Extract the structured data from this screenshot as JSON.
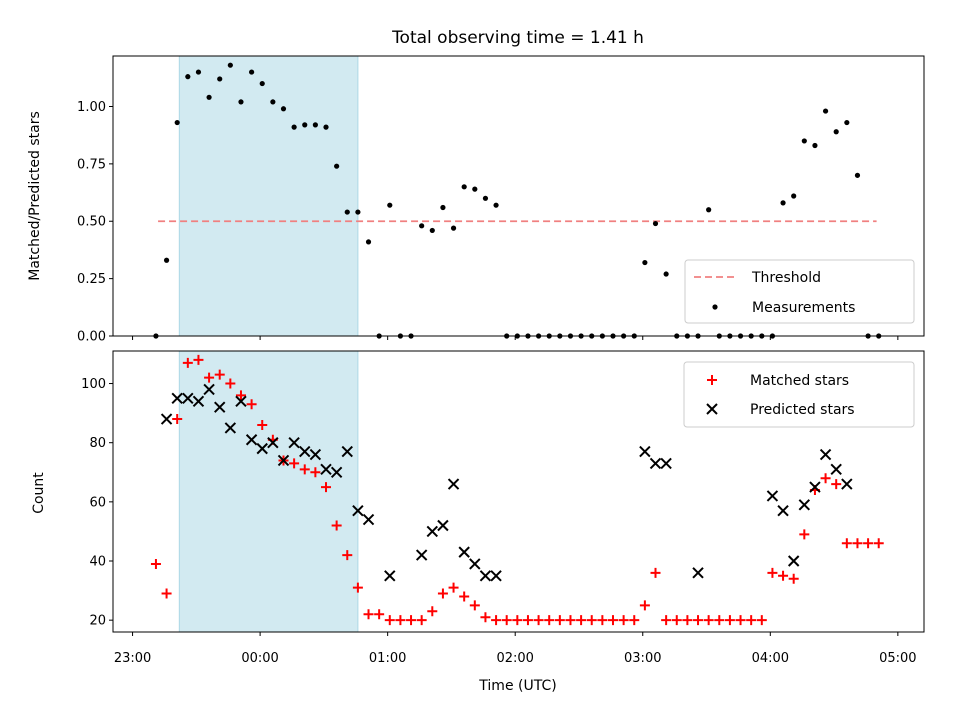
{
  "chart_data": [
    {
      "type": "scatter",
      "title": "Total observing time = 1.41 h",
      "xlabel": "",
      "ylabel": "Matched/Predicted stars",
      "xlim": [
        "23:00",
        "05:00"
      ],
      "ylim": [
        0.0,
        1.22
      ],
      "yticks": [
        "0.00",
        "0.25",
        "0.50",
        "0.75",
        "1.00"
      ],
      "shaded_region": {
        "x0": "23:22",
        "x1": "00:46",
        "color": "#add8e6"
      },
      "threshold": {
        "name": "Threshold",
        "y": 0.5,
        "x0": "23:12",
        "x1": "04:50",
        "color": "#f08080",
        "style": "dashed"
      },
      "series": [
        {
          "name": "Measurements",
          "color": "#000000",
          "x": [
            "23:11",
            "23:16",
            "23:21",
            "23:26",
            "23:31",
            "23:36",
            "23:41",
            "23:46",
            "23:51",
            "23:56",
            "00:01",
            "00:06",
            "00:11",
            "00:16",
            "00:21",
            "00:26",
            "00:31",
            "00:36",
            "00:41",
            "00:46",
            "00:51",
            "00:56",
            "01:01",
            "01:06",
            "01:11",
            "01:16",
            "01:21",
            "01:26",
            "01:31",
            "01:36",
            "01:41",
            "01:46",
            "01:51",
            "01:56",
            "02:01",
            "02:06",
            "02:11",
            "02:16",
            "02:21",
            "02:26",
            "02:31",
            "02:36",
            "02:41",
            "02:46",
            "02:51",
            "02:56",
            "03:01",
            "03:06",
            "03:11",
            "03:16",
            "03:21",
            "03:26",
            "03:31",
            "03:36",
            "03:41",
            "03:46",
            "03:51",
            "03:56",
            "04:01",
            "04:06",
            "04:11",
            "04:16",
            "04:21",
            "04:26",
            "04:31",
            "04:36",
            "04:41",
            "04:46",
            "04:51"
          ],
          "y": [
            0.0,
            0.33,
            0.93,
            1.13,
            1.15,
            1.04,
            1.12,
            1.18,
            1.02,
            1.15,
            1.1,
            1.02,
            0.99,
            0.91,
            0.92,
            0.92,
            0.91,
            0.74,
            0.54,
            0.54,
            0.41,
            0.0,
            0.57,
            0.0,
            0.0,
            0.48,
            0.46,
            0.56,
            0.47,
            0.65,
            0.64,
            0.6,
            0.57,
            0.0,
            0.0,
            0.0,
            0.0,
            0.0,
            0.0,
            0.0,
            0.0,
            0.0,
            0.0,
            0.0,
            0.0,
            0.0,
            0.32,
            0.49,
            0.27,
            0.0,
            0.0,
            0.0,
            0.55,
            0.0,
            0.0,
            0.0,
            0.0,
            0.0,
            0.0,
            0.58,
            0.61,
            0.85,
            0.83,
            0.98,
            0.89,
            0.93,
            0.7,
            0.0,
            0.0
          ]
        }
      ],
      "legend": {
        "position": "lower-right",
        "entries": [
          "Threshold",
          "Measurements"
        ]
      }
    },
    {
      "type": "scatter",
      "title": "",
      "xlabel": "Time (UTC)",
      "ylabel": "Count",
      "xlim": [
        "23:00",
        "05:00"
      ],
      "ylim": [
        16,
        111
      ],
      "yticks": [
        "20",
        "40",
        "60",
        "80",
        "100"
      ],
      "xticks": [
        "23:00",
        "00:00",
        "01:00",
        "02:00",
        "03:00",
        "04:00",
        "05:00"
      ],
      "shaded_region": {
        "x0": "23:22",
        "x1": "00:46",
        "color": "#add8e6"
      },
      "series": [
        {
          "name": "Matched stars",
          "marker": "+",
          "color": "#ff0000",
          "x": [
            "23:11",
            "23:16",
            "23:21",
            "23:26",
            "23:31",
            "23:36",
            "23:41",
            "23:46",
            "23:51",
            "23:56",
            "00:01",
            "00:06",
            "00:11",
            "00:16",
            "00:21",
            "00:26",
            "00:31",
            "00:36",
            "00:41",
            "00:46",
            "00:51",
            "00:56",
            "01:01",
            "01:06",
            "01:11",
            "01:16",
            "01:21",
            "01:26",
            "01:31",
            "01:36",
            "01:41",
            "01:46",
            "01:51",
            "01:56",
            "02:01",
            "02:06",
            "02:11",
            "02:16",
            "02:21",
            "02:26",
            "02:31",
            "02:36",
            "02:41",
            "02:46",
            "02:51",
            "02:56",
            "03:01",
            "03:06",
            "03:11",
            "03:16",
            "03:21",
            "03:26",
            "03:31",
            "03:36",
            "03:41",
            "03:46",
            "03:51",
            "03:56",
            "04:01",
            "04:06",
            "04:11",
            "04:16",
            "04:21",
            "04:26",
            "04:31",
            "04:36",
            "04:41",
            "04:46",
            "04:51"
          ],
          "y": [
            39,
            29,
            88,
            107,
            108,
            102,
            103,
            100,
            96,
            93,
            86,
            81,
            74,
            73,
            71,
            70,
            65,
            52,
            42,
            31,
            22,
            22,
            20,
            20,
            20,
            20,
            23,
            29,
            31,
            28,
            25,
            21,
            20,
            20,
            20,
            20,
            20,
            20,
            20,
            20,
            20,
            20,
            20,
            20,
            20,
            20,
            25,
            36,
            20,
            20,
            20,
            20,
            20,
            20,
            20,
            20,
            20,
            20,
            36,
            35,
            34,
            49,
            64,
            68,
            66,
            46,
            46,
            46,
            46
          ]
        },
        {
          "name": "Predicted stars",
          "marker": "x",
          "color": "#000000",
          "x": [
            "23:16",
            "23:21",
            "23:26",
            "23:31",
            "23:36",
            "23:41",
            "23:46",
            "23:51",
            "23:56",
            "00:01",
            "00:06",
            "00:11",
            "00:16",
            "00:21",
            "00:26",
            "00:31",
            "00:36",
            "00:41",
            "00:46",
            "00:51",
            "01:01",
            "01:16",
            "01:21",
            "01:26",
            "01:31",
            "01:36",
            "01:41",
            "01:46",
            "01:51",
            "03:01",
            "03:06",
            "03:11",
            "03:26",
            "04:01",
            "04:06",
            "04:11",
            "04:16",
            "04:21",
            "04:26",
            "04:31",
            "04:36"
          ],
          "y": [
            88,
            95,
            95,
            94,
            98,
            92,
            85,
            94,
            81,
            78,
            80,
            74,
            80,
            77,
            76,
            71,
            70,
            77,
            57,
            54,
            35,
            42,
            50,
            52,
            66,
            43,
            39,
            35,
            35,
            77,
            73,
            73,
            36,
            62,
            57,
            40,
            59,
            65,
            76,
            71,
            66
          ]
        }
      ],
      "legend": {
        "position": "upper-right",
        "entries": [
          "Matched stars",
          "Predicted stars"
        ]
      }
    }
  ]
}
